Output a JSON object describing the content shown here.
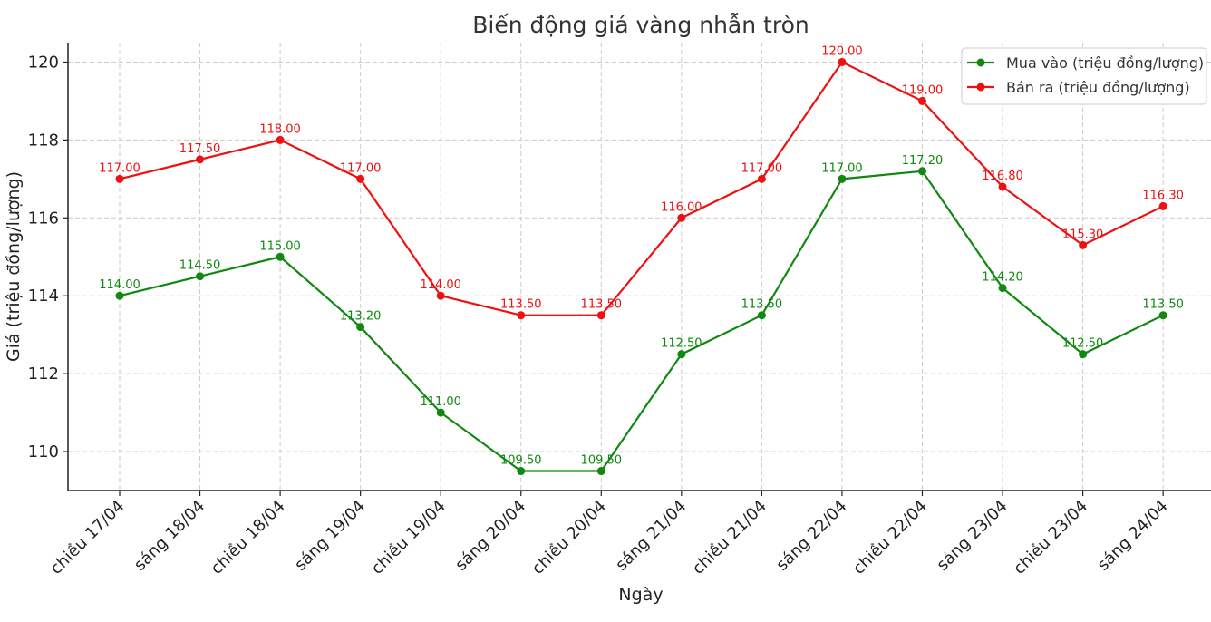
{
  "chart_data": {
    "type": "line",
    "title": "Biến động giá vàng nhẫn tròn",
    "xlabel": "Ngày",
    "ylabel": "Giá (triệu đồng/lượng)",
    "ylim": [
      109,
      120.5
    ],
    "yticks": [
      110,
      112,
      114,
      116,
      118,
      120
    ],
    "grid": true,
    "legend_position": "top-right",
    "categories": [
      "chiều 17/04",
      "sáng 18/04",
      "chiều 18/04",
      "sáng 19/04",
      "chiều 19/04",
      "sáng 20/04",
      "chiều 20/04",
      "sáng 21/04",
      "chiều 21/04",
      "sáng 22/04",
      "chiều 22/04",
      "sáng 23/04",
      "chiều 23/04",
      "sáng 24/04"
    ],
    "series": [
      {
        "name": "Mua vào (triệu đồng/lượng)",
        "color": "#118811",
        "values": [
          114.0,
          114.5,
          115.0,
          113.2,
          111.0,
          109.5,
          109.5,
          112.5,
          113.5,
          117.0,
          117.2,
          114.2,
          112.5,
          113.5
        ],
        "labels": [
          "114.00",
          "114.50",
          "115.00",
          "113.20",
          "111.00",
          "109.50",
          "109.50",
          "112.50",
          "113.50",
          "117.00",
          "117.20",
          "114.20",
          "112.50",
          "113.50"
        ]
      },
      {
        "name": "Bán ra (triệu đồng/lượng)",
        "color": "#ee1111",
        "values": [
          117.0,
          117.5,
          118.0,
          117.0,
          114.0,
          113.5,
          113.5,
          116.0,
          117.0,
          120.0,
          119.0,
          116.8,
          115.3,
          116.3
        ],
        "labels": [
          "117.00",
          "117.50",
          "118.00",
          "117.00",
          "114.00",
          "113.50",
          "113.50",
          "116.00",
          "117.00",
          "120.00",
          "119.00",
          "116.80",
          "115.30",
          "116.30"
        ]
      }
    ]
  }
}
